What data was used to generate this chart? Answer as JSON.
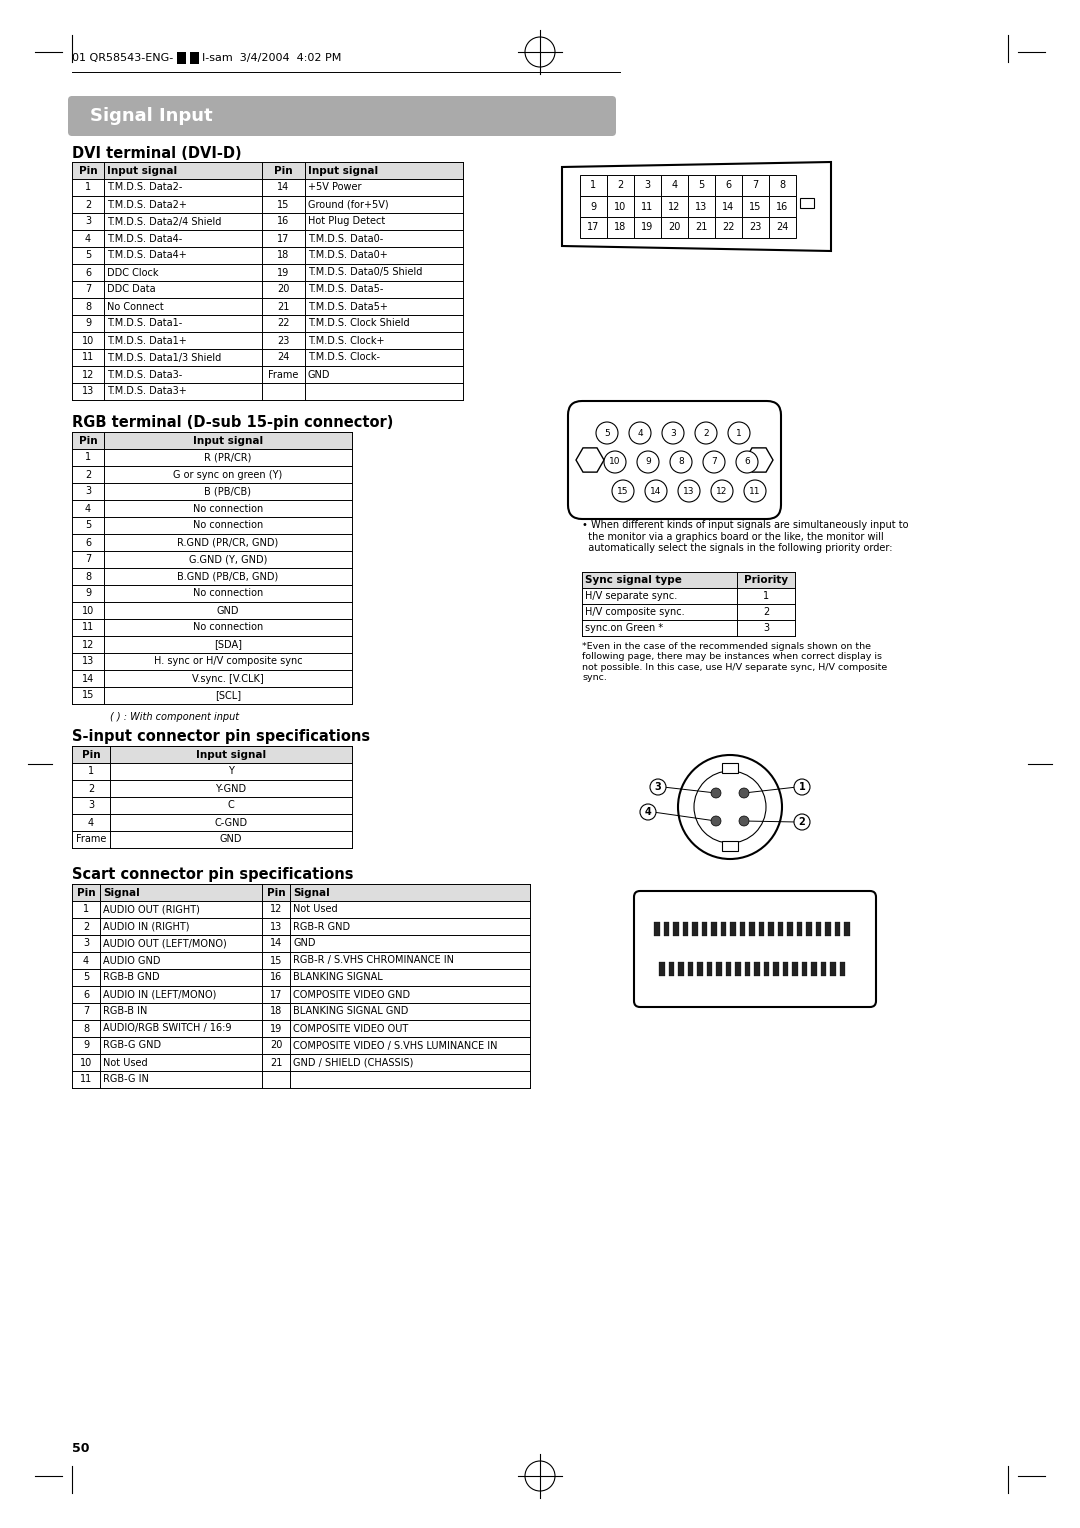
{
  "title": "Signal Input",
  "section1_title": "DVI terminal (DVI-D)",
  "dvi_cols": [
    "Pin",
    "Input signal",
    "Pin",
    "Input signal"
  ],
  "dvi_data": [
    [
      "1",
      "T.M.D.S. Data2-",
      "14",
      "+5V Power"
    ],
    [
      "2",
      "T.M.D.S. Data2+",
      "15",
      "Ground (for+5V)"
    ],
    [
      "3",
      "T.M.D.S. Data2/4 Shield",
      "16",
      "Hot Plug Detect"
    ],
    [
      "4",
      "T.M.D.S. Data4-",
      "17",
      "T.M.D.S. Data0-"
    ],
    [
      "5",
      "T.M.D.S. Data4+",
      "18",
      "T.M.D.S. Data0+"
    ],
    [
      "6",
      "DDC Clock",
      "19",
      "T.M.D.S. Data0/5 Shield"
    ],
    [
      "7",
      "DDC Data",
      "20",
      "T.M.D.S. Data5-"
    ],
    [
      "8",
      "No Connect",
      "21",
      "T.M.D.S. Data5+"
    ],
    [
      "9",
      "T.M.D.S. Data1-",
      "22",
      "T.M.D.S. Clock Shield"
    ],
    [
      "10",
      "T.M.D.S. Data1+",
      "23",
      "T.M.D.S. Clock+"
    ],
    [
      "11",
      "T.M.D.S. Data1/3 Shield",
      "24",
      "T.M.D.S. Clock-"
    ],
    [
      "12",
      "T.M.D.S. Data3-",
      "Frame",
      "GND"
    ],
    [
      "13",
      "T.M.D.S. Data3+",
      "",
      ""
    ]
  ],
  "dvi_connector_rows": [
    [
      "1",
      "2",
      "3",
      "4",
      "5",
      "6",
      "7",
      "8"
    ],
    [
      "9",
      "10",
      "11",
      "12",
      "13",
      "14",
      "15",
      "16"
    ],
    [
      "17",
      "18",
      "19",
      "20",
      "21",
      "22",
      "23",
      "24"
    ]
  ],
  "section2_title": "RGB terminal (D-sub 15-pin connector)",
  "rgb_cols": [
    "Pin",
    "Input signal"
  ],
  "rgb_data": [
    [
      "1",
      "R (PR/CR)"
    ],
    [
      "2",
      "G or sync on green (Y)"
    ],
    [
      "3",
      "B (PB/CB)"
    ],
    [
      "4",
      "No connection"
    ],
    [
      "5",
      "No connection"
    ],
    [
      "6",
      "R.GND (PR/CR, GND)"
    ],
    [
      "7",
      "G.GND (Y, GND)"
    ],
    [
      "8",
      "B.GND (PB/CB, GND)"
    ],
    [
      "9",
      "No connection"
    ],
    [
      "10",
      "GND"
    ],
    [
      "11",
      "No connection"
    ],
    [
      "12",
      "[SDA]"
    ],
    [
      "13",
      "H. sync or H/V composite sync"
    ],
    [
      "14",
      "V.sync. [V.CLK]"
    ],
    [
      "15",
      "[SCL]"
    ]
  ],
  "rgb_note": "( ) : With component input",
  "sync_note": "• When different kinds of input signals are simultaneously input to\n  the monitor via a graphics board or the like, the monitor will\n  automatically select the signals in the following priority order:",
  "sync_table_cols": [
    "Sync signal type",
    "Priority"
  ],
  "sync_table_data": [
    [
      "H/V separate sync.",
      "1"
    ],
    [
      "H/V composite sync.",
      "2"
    ],
    [
      "sync.on Green *",
      "3"
    ]
  ],
  "asterisk_note": "*Even in the case of the recommended signals shown on the\nfollowing page, there may be instances when correct display is\nnot possible. In this case, use H/V separate sync, H/V composite\nsync.",
  "section3_title": "S-input connector pin specifications",
  "sinput_cols": [
    "Pin",
    "Input signal"
  ],
  "sinput_data": [
    [
      "1",
      "Y"
    ],
    [
      "2",
      "Y-GND"
    ],
    [
      "3",
      "C"
    ],
    [
      "4",
      "C-GND"
    ],
    [
      "Frame",
      "GND"
    ]
  ],
  "section4_title": "Scart connector pin specifications",
  "scart_cols": [
    "Pin",
    "Signal",
    "Pin",
    "Signal"
  ],
  "scart_data": [
    [
      "1",
      "AUDIO OUT (RIGHT)",
      "12",
      "Not Used"
    ],
    [
      "2",
      "AUDIO IN (RIGHT)",
      "13",
      "RGB-R GND"
    ],
    [
      "3",
      "AUDIO OUT (LEFT/MONO)",
      "14",
      "GND"
    ],
    [
      "4",
      "AUDIO GND",
      "15",
      "RGB-R / S.VHS CHROMINANCE IN"
    ],
    [
      "5",
      "RGB-B GND",
      "16",
      "BLANKING SIGNAL"
    ],
    [
      "6",
      "AUDIO IN (LEFT/MONO)",
      "17",
      "COMPOSITE VIDEO GND"
    ],
    [
      "7",
      "RGB-B IN",
      "18",
      "BLANKING SIGNAL GND"
    ],
    [
      "8",
      "AUDIO/RGB SWITCH / 16:9",
      "19",
      "COMPOSITE VIDEO OUT"
    ],
    [
      "9",
      "RGB-G GND",
      "20",
      "COMPOSITE VIDEO / S.VHS LUMINANCE IN"
    ],
    [
      "10",
      "Not Used",
      "21",
      "GND / SHIELD (CHASSIS)"
    ],
    [
      "11",
      "RGB-G IN",
      "",
      ""
    ]
  ],
  "bg_color": "#ffffff",
  "page_number": "50"
}
